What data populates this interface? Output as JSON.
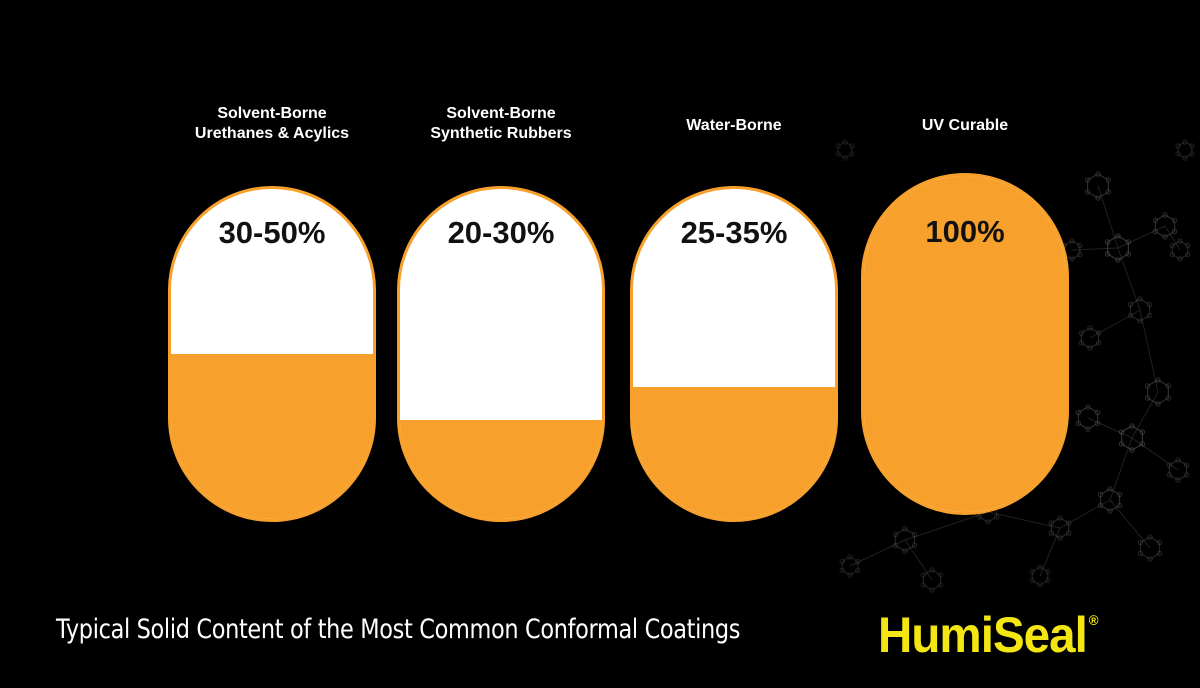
{
  "colors": {
    "background": "#000000",
    "accent_orange": "#f7a12c",
    "capsule_empty": "#ffffff",
    "logo_yellow": "#f4e612",
    "decor_gray": "#4a4a4a"
  },
  "chart_data": {
    "type": "bar",
    "orientation": "vertical",
    "style": "capsule-fill-gauge",
    "title": "Typical Solid Content of the Most Common Conformal Coatings",
    "ylabel": "",
    "xlabel": "",
    "ylim": [
      0,
      100
    ],
    "categories": [
      "Solvent-Borne\nUrethanes & Acylics",
      "Solvent-Borne\nSynthetic Rubbers",
      "Water-Borne",
      "UV Curable"
    ],
    "data_labels": [
      "30-50%",
      "20-30%",
      "25-35%",
      "100%"
    ],
    "ranges": [
      [
        30,
        50
      ],
      [
        20,
        30
      ],
      [
        25,
        35
      ],
      [
        100,
        100
      ]
    ],
    "fill_fraction": [
      0.5,
      0.3,
      0.4,
      1.0
    ],
    "grid": false,
    "legend": "none"
  },
  "caption": "Typical Solid Content of the Most Common Conformal Coatings",
  "logo": {
    "text": "HumiSeal",
    "registered_mark": "®"
  }
}
